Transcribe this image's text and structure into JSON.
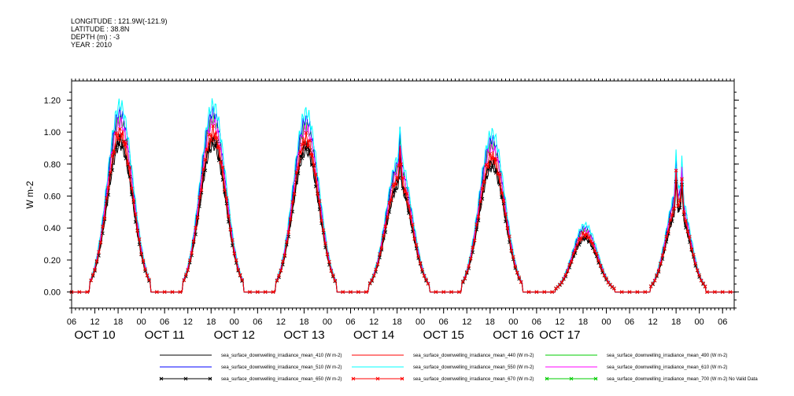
{
  "header": {
    "longitude": "LONGITUDE : 121.9W(-121.9)",
    "latitude": "LATITUDE : 38.8N",
    "depth": "DEPTH (m) : -3",
    "year": "YEAR : 2010"
  },
  "chart_data": {
    "type": "line",
    "ylabel": "W m-2",
    "ylim": [
      -0.1,
      1.32
    ],
    "yticks": [
      0.0,
      0.2,
      0.4,
      0.6,
      0.8,
      1.0,
      1.2
    ],
    "ytick_labels": [
      "0.00",
      "0.20",
      "0.40",
      "0.60",
      "0.80",
      "1.00",
      "1.20"
    ],
    "xlim_hours": [
      0,
      171
    ],
    "xtick_hours": [
      0,
      6,
      12,
      18,
      24,
      30,
      36,
      42,
      48,
      54,
      60,
      66,
      72,
      78,
      84,
      90,
      96,
      102,
      108,
      114,
      120,
      126,
      132,
      138,
      144,
      150,
      156,
      162,
      168
    ],
    "xtick_labels": [
      "06",
      "12",
      "18",
      "00",
      "06",
      "12",
      "18",
      "00",
      "06",
      "12",
      "18",
      "00",
      "06",
      "12",
      "18",
      "00",
      "06",
      "12",
      "18",
      "00",
      "06",
      "12",
      "18",
      "00",
      "06",
      "12",
      "18",
      "00",
      "06"
    ],
    "date_labels": [
      {
        "text": "OCT 10",
        "hour": 6
      },
      {
        "text": "OCT 11",
        "hour": 24
      },
      {
        "text": "OCT 12",
        "hour": 42
      },
      {
        "text": "OCT 13",
        "hour": 60
      },
      {
        "text": "OCT 14",
        "hour": 78
      },
      {
        "text": "OCT 15",
        "hour": 96
      },
      {
        "text": "OCT 16",
        "hour": 114
      },
      {
        "text": "OCT 17",
        "hour": 126
      }
    ],
    "day_peaks": [
      {
        "noon_hour": 12.5,
        "peak": 1.0,
        "width": 3.3
      },
      {
        "noon_hour": 36.5,
        "peak": 1.0,
        "width": 3.3
      },
      {
        "noon_hour": 60.5,
        "peak": 0.96,
        "width": 3.3
      },
      {
        "noon_hour": 84.5,
        "peak": 0.72,
        "width": 3.3,
        "spikes": [
          [
            84.8,
            0.18
          ]
        ]
      },
      {
        "noon_hour": 108.5,
        "peak": 0.85,
        "width": 3.3
      },
      {
        "noon_hour": 132.5,
        "peak": 0.36,
        "width": 3.2
      },
      {
        "noon_hour": 156.5,
        "peak": 0.55,
        "width": 3.0,
        "spikes": [
          [
            156.0,
            0.2
          ],
          [
            157.5,
            0.2
          ]
        ]
      }
    ],
    "series": [
      {
        "name": "sea_surface_downwelling_irradiance_mean_410 (W m-2)",
        "color": "#000000",
        "scale": 0.92,
        "marker": "none"
      },
      {
        "name": "sea_surface_downwelling_irradiance_mean_440 (W m-2)",
        "color": "#ff0000",
        "scale": 0.97,
        "marker": "none"
      },
      {
        "name": "sea_surface_downwelling_irradiance_mean_490 (W m-2)",
        "color": "#00cc00",
        "scale": 1.08,
        "marker": "none"
      },
      {
        "name": "sea_surface_downwelling_irradiance_mean_510 (W m-2)",
        "color": "#0000ff",
        "scale": 1.12,
        "marker": "none"
      },
      {
        "name": "sea_surface_downwelling_irradiance_mean_550 (W m-2)",
        "color": "#00ffff",
        "scale": 1.17,
        "marker": "none"
      },
      {
        "name": "sea_surface_downwelling_irradiance_mean_610 (W m-2)",
        "color": "#ff00ff",
        "scale": 1.06,
        "marker": "none"
      },
      {
        "name": "sea_surface_downwelling_irradiance_mean_650 (W m-2)",
        "color": "#000000",
        "scale": 0.95,
        "marker": "x"
      },
      {
        "name": "sea_surface_downwelling_irradiance_mean_670 (W m-2)",
        "color": "#ff0000",
        "scale": 1.0,
        "marker": "x"
      },
      {
        "name": "sea_surface_downwelling_irradiance_mean_700 (W m-2) No Valid Data",
        "color": "#00cc00",
        "scale": 0,
        "marker": "x"
      }
    ],
    "grid": false,
    "legend_placement": "bottom"
  }
}
